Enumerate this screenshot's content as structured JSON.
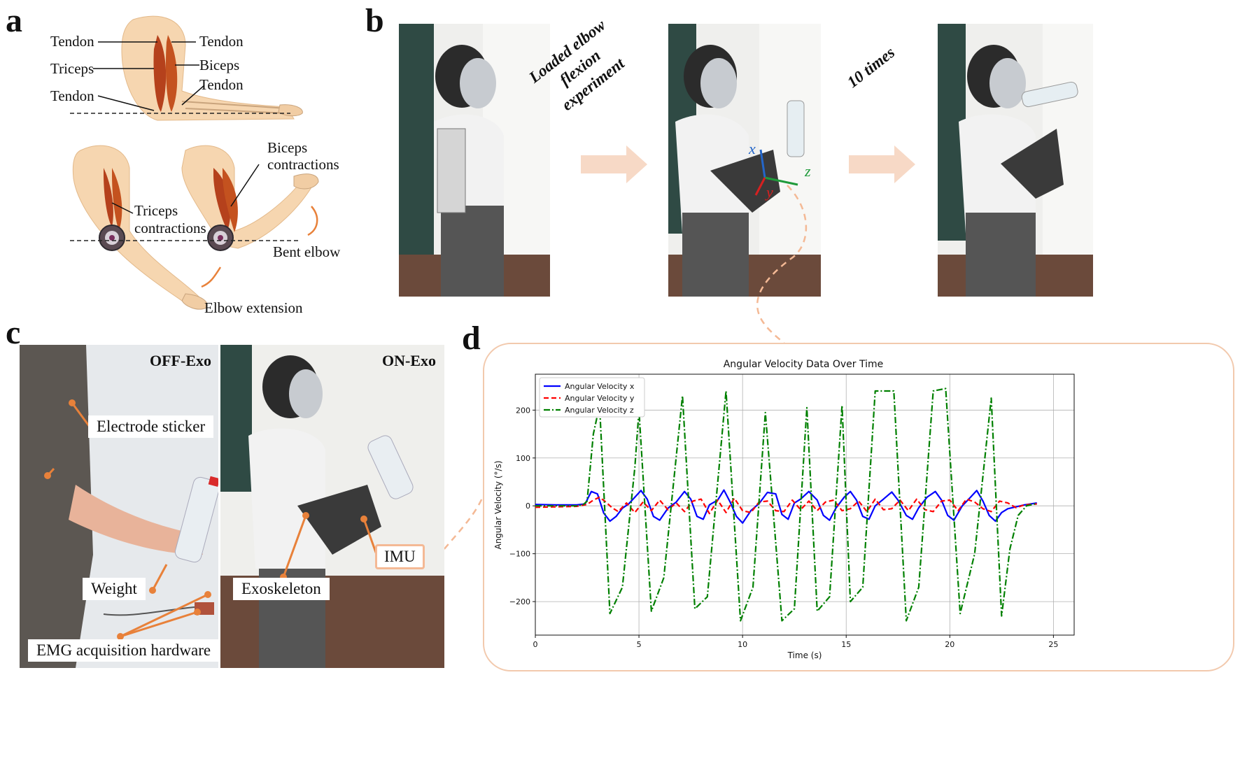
{
  "panels": {
    "a": {
      "letter": "a",
      "labels": {
        "tendon_top_left": "Tendon",
        "tendon_top_right": "Tendon",
        "triceps": "Triceps",
        "biceps": "Biceps",
        "tendon_mid_right": "Tendon",
        "tendon_mid_left": "Tendon",
        "biceps_contractions_1": "Biceps",
        "biceps_contractions_2": "contractions",
        "triceps_contractions_1": "Triceps",
        "triceps_contractions_2": "contractions",
        "bent_elbow": "Bent elbow",
        "elbow_extension": "Elbow extension"
      }
    },
    "b": {
      "letter": "b",
      "step1_line1": "Loaded elbow",
      "step1_line2": "flexion experiment",
      "step2": "10 times",
      "axis_x": "x",
      "axis_y": "y",
      "axis_z": "z"
    },
    "c": {
      "letter": "c",
      "off_exo": "OFF-Exo",
      "on_exo": "ON-Exo",
      "electrode_sticker": "Electrode sticker",
      "weight": "Weight",
      "emg_hardware": "EMG acquisition hardware",
      "exoskeleton": "Exoskeleton",
      "imu": "IMU"
    },
    "d": {
      "letter": "d"
    }
  },
  "colors": {
    "accent_orange": "#e8813a",
    "frame_peach": "#f2c9ad",
    "arrow_peach": "#f7d9c6",
    "series_x": "#0000ff",
    "series_y": "#ff0000",
    "series_z": "#008000"
  },
  "chart_data": {
    "type": "line",
    "title": "Angular Velocity Data Over Time",
    "xlabel": "Time (s)",
    "ylabel": "Angular Velocity (°/s)",
    "xlim": [
      0,
      26
    ],
    "ylim": [
      -270,
      275
    ],
    "xticks": [
      0,
      5,
      10,
      15,
      20,
      25
    ],
    "yticks": [
      -200,
      -100,
      0,
      100,
      200
    ],
    "grid": true,
    "legend_position": "upper-left",
    "series": [
      {
        "name": "Angular Velocity x",
        "color": "#0000ff",
        "style": "solid",
        "x": [
          0,
          1,
          2,
          2.4,
          2.7,
          3.0,
          3.3,
          3.6,
          3.9,
          4.2,
          4.5,
          4.8,
          5.1,
          5.4,
          5.7,
          6.0,
          6.4,
          6.8,
          7.2,
          7.5,
          7.8,
          8.1,
          8.4,
          8.8,
          9.1,
          9.4,
          9.7,
          10.0,
          10.4,
          10.8,
          11.2,
          11.6,
          11.9,
          12.2,
          12.5,
          12.8,
          13.2,
          13.6,
          13.9,
          14.2,
          14.5,
          14.9,
          15.2,
          15.5,
          15.8,
          16.1,
          16.4,
          16.8,
          17.2,
          17.5,
          17.9,
          18.2,
          18.5,
          18.9,
          19.3,
          19.6,
          19.9,
          20.2,
          20.6,
          21.0,
          21.3,
          21.6,
          21.9,
          22.2,
          22.5,
          22.8,
          23.2,
          23.6,
          24.2
        ],
        "y": [
          3,
          2,
          2,
          4,
          30,
          25,
          -15,
          -32,
          -22,
          -5,
          4,
          18,
          32,
          14,
          -22,
          -30,
          -5,
          8,
          30,
          14,
          -22,
          -28,
          2,
          12,
          33,
          8,
          -22,
          -36,
          -10,
          5,
          28,
          25,
          -18,
          -28,
          6,
          14,
          30,
          12,
          -20,
          -30,
          -5,
          18,
          30,
          12,
          -22,
          -28,
          0,
          14,
          29,
          12,
          -20,
          -28,
          -4,
          18,
          30,
          12,
          -20,
          -30,
          0,
          18,
          32,
          10,
          -20,
          -32,
          -14,
          -6,
          -2,
          2,
          6
        ]
      },
      {
        "name": "Angular Velocity y",
        "color": "#ff0000",
        "style": "dashed",
        "x": [
          0,
          1,
          2,
          2.5,
          2.8,
          3.1,
          3.4,
          3.7,
          4.0,
          4.4,
          4.8,
          5.2,
          5.6,
          6.0,
          6.4,
          6.8,
          7.2,
          7.6,
          8.0,
          8.4,
          8.8,
          9.2,
          9.6,
          10.0,
          10.4,
          10.8,
          11.2,
          11.6,
          12.0,
          12.4,
          12.8,
          13.2,
          13.6,
          14.0,
          14.4,
          14.8,
          15.2,
          15.6,
          16.0,
          16.4,
          16.8,
          17.2,
          17.6,
          18.0,
          18.4,
          18.8,
          19.2,
          19.6,
          20.0,
          20.4,
          20.8,
          21.2,
          21.6,
          22.0,
          22.4,
          22.8,
          23.2,
          23.6,
          24.2
        ],
        "y": [
          -3,
          -2,
          -1,
          3,
          12,
          18,
          8,
          -4,
          -12,
          6,
          -14,
          8,
          -10,
          12,
          -8,
          6,
          -12,
          10,
          14,
          -16,
          12,
          -14,
          16,
          -10,
          -14,
          8,
          10,
          -10,
          -12,
          12,
          -8,
          10,
          -10,
          8,
          12,
          -10,
          -6,
          10,
          -12,
          14,
          -8,
          -6,
          12,
          -10,
          14,
          -8,
          -12,
          10,
          12,
          -10,
          14,
          8,
          -6,
          -12,
          10,
          6,
          -4,
          2,
          4
        ]
      },
      {
        "name": "Angular Velocity z",
        "color": "#008000",
        "style": "dashdot",
        "x": [
          0,
          1,
          2,
          2.3,
          2.5,
          2.8,
          3.1,
          3.6,
          4.2,
          4.8,
          5.0,
          5.6,
          6.2,
          7.1,
          7.7,
          8.3,
          9.2,
          9.9,
          10.5,
          11.1,
          11.9,
          12.5,
          13.1,
          13.6,
          14.2,
          14.8,
          15.2,
          15.8,
          16.4,
          17.3,
          17.9,
          18.5,
          19.2,
          19.8,
          20.5,
          21.2,
          22.0,
          22.5,
          22.9,
          23.3,
          23.7,
          24.2
        ],
        "y": [
          0,
          0,
          0,
          2,
          10,
          150,
          210,
          -225,
          -170,
          80,
          200,
          -220,
          -150,
          230,
          -215,
          -190,
          240,
          -240,
          -170,
          195,
          -240,
          -215,
          205,
          -220,
          -190,
          210,
          -200,
          -170,
          240,
          240,
          -240,
          -170,
          240,
          245,
          -225,
          -100,
          225,
          -230,
          -90,
          -20,
          0,
          5
        ]
      }
    ]
  }
}
